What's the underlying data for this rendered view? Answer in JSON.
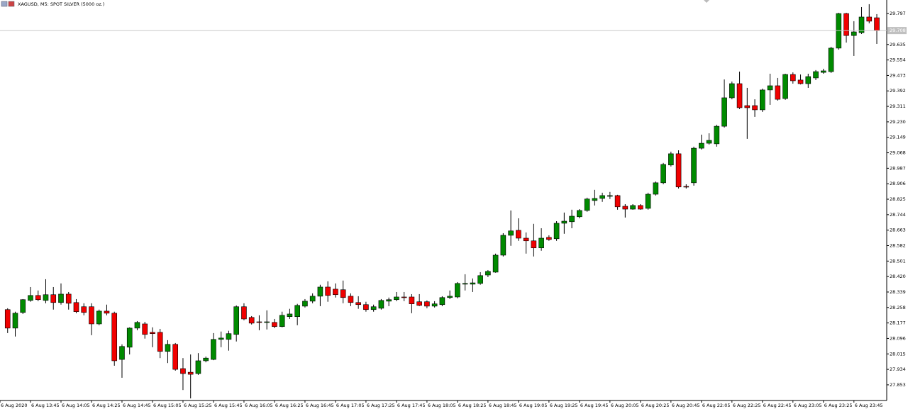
{
  "chart_data": {
    "type": "candlestick",
    "title": "XAGUSD, M5:  SPOT SILVER (5000 oz.)",
    "up_color": "#008a00",
    "down_color": "#f00000",
    "xlim": [
      -1,
      115.3
    ],
    "xticks": [
      {
        "value": -1,
        "label": "6 Aug 2020"
      },
      {
        "value": 3,
        "label": "6 Aug 13:45"
      },
      {
        "value": 7,
        "label": "6 Aug 14:05"
      },
      {
        "value": 11,
        "label": "6 Aug 14:25"
      },
      {
        "value": 15,
        "label": "6 Aug 14:45"
      },
      {
        "value": 19,
        "label": "6 Aug 15:05"
      },
      {
        "value": 23,
        "label": "6 Aug 15:25"
      },
      {
        "value": 27,
        "label": "6 Aug 15:45"
      },
      {
        "value": 31,
        "label": "6 Aug 16:05"
      },
      {
        "value": 35,
        "label": "6 Aug 16:25"
      },
      {
        "value": 39,
        "label": "6 Aug 16:45"
      },
      {
        "value": 43,
        "label": "6 Aug 17:05"
      },
      {
        "value": 47,
        "label": "6 Aug 17:25"
      },
      {
        "value": 51,
        "label": "6 Aug 17:45"
      },
      {
        "value": 55,
        "label": "6 Aug 18:05"
      },
      {
        "value": 59,
        "label": "6 Aug 18:25"
      },
      {
        "value": 63,
        "label": "6 Aug 18:45"
      },
      {
        "value": 67,
        "label": "6 Aug 19:05"
      },
      {
        "value": 71,
        "label": "6 Aug 19:25"
      },
      {
        "value": 75,
        "label": "6 Aug 19:45"
      },
      {
        "value": 79,
        "label": "6 Aug 20:05"
      },
      {
        "value": 83,
        "label": "6 Aug 20:25"
      },
      {
        "value": 87,
        "label": "6 Aug 20:45"
      },
      {
        "value": 91,
        "label": "6 Aug 22:05"
      },
      {
        "value": 95,
        "label": "6 Aug 22:25"
      },
      {
        "value": 99,
        "label": "6 Aug 22:45"
      },
      {
        "value": 103,
        "label": "6 Aug 23:05"
      },
      {
        "value": 107,
        "label": "6 Aug 23:25"
      },
      {
        "value": 111,
        "label": "6 Aug 23:45"
      }
    ],
    "ylim": [
      27.771,
      29.868
    ],
    "yticks": [
      27.853,
      27.934,
      28.015,
      28.096,
      28.177,
      28.258,
      28.339,
      {
        "value": 28.42,
        "label": "28.420"
      },
      28.501,
      28.582,
      28.663,
      28.744,
      28.825,
      28.906,
      28.987,
      29.068,
      29.149,
      {
        "value": 29.23,
        "label": "29.230"
      },
      29.311,
      29.392,
      29.473,
      29.554,
      29.635,
      29.797
    ],
    "last_price": 29.708,
    "open": [
      28.247,
      28.15,
      28.232,
      28.295,
      28.321,
      28.295,
      28.325,
      28.284,
      28.328,
      28.284,
      28.262,
      28.262,
      28.172,
      28.239,
      28.228,
      27.986,
      28.05,
      28.15,
      28.172,
      28.128,
      28.128,
      28.028,
      28.065,
      27.938,
      27.919,
      27.912,
      27.979,
      27.986,
      28.091,
      28.091,
      28.117,
      28.262,
      28.206,
      28.183,
      28.18,
      28.18,
      28.158,
      28.21,
      28.21,
      28.265,
      28.291,
      28.317,
      28.365,
      28.354,
      28.351,
      28.317,
      28.284,
      28.273,
      28.247,
      28.254,
      28.291,
      28.299,
      28.313,
      28.313,
      28.288,
      28.288,
      28.265,
      28.273,
      28.31,
      28.313,
      28.38,
      28.38,
      28.384,
      28.428,
      28.443,
      28.532,
      28.636,
      28.662,
      28.621,
      28.607,
      28.57,
      28.625,
      28.618,
      28.699,
      28.707,
      28.733,
      28.766,
      28.818,
      28.829,
      28.84,
      28.844,
      28.788,
      28.773,
      28.792,
      28.777,
      28.851,
      28.911,
      29.004,
      29.063,
      28.892,
      28.911,
      29.092,
      29.118,
      29.115,
      29.207,
      29.356,
      29.43,
      29.315,
      29.315,
      29.293,
      29.397,
      29.419,
      29.352,
      29.478,
      29.449,
      29.43,
      29.46,
      29.489,
      29.493,
      29.616,
      29.797,
      29.682,
      29.697,
      29.779,
      29.775
    ],
    "high": [
      28.254,
      28.236,
      28.302,
      28.365,
      28.347,
      28.406,
      28.365,
      28.384,
      28.339,
      28.302,
      28.28,
      28.28,
      28.247,
      28.273,
      28.236,
      28.065,
      28.154,
      28.187,
      28.183,
      28.154,
      28.146,
      28.087,
      28.072,
      27.993,
      28.012,
      28.019,
      28.001,
      28.124,
      28.132,
      28.136,
      28.269,
      28.28,
      28.213,
      28.217,
      28.243,
      28.198,
      28.236,
      28.251,
      28.277,
      28.302,
      28.332,
      28.377,
      28.395,
      28.384,
      28.399,
      28.332,
      28.317,
      28.288,
      28.273,
      28.302,
      28.31,
      28.339,
      28.339,
      28.328,
      28.328,
      28.295,
      28.291,
      28.317,
      28.347,
      28.391,
      28.432,
      28.41,
      28.443,
      28.454,
      28.54,
      28.647,
      28.766,
      28.725,
      28.651,
      28.696,
      28.673,
      28.636,
      28.71,
      28.755,
      28.77,
      28.773,
      28.833,
      28.874,
      28.859,
      28.863,
      28.848,
      28.799,
      28.799,
      28.799,
      28.859,
      28.918,
      29.015,
      29.074,
      29.081,
      28.903,
      29.1,
      29.163,
      29.17,
      29.215,
      29.452,
      29.441,
      29.493,
      29.408,
      29.348,
      29.404,
      29.482,
      29.46,
      29.482,
      29.489,
      29.478,
      29.482,
      29.501,
      29.508,
      29.623,
      29.801,
      29.801,
      29.757,
      29.831,
      29.846,
      29.794
    ],
    "low": [
      28.124,
      28.106,
      28.224,
      28.288,
      28.291,
      28.28,
      28.247,
      28.273,
      28.247,
      28.228,
      28.217,
      28.113,
      28.165,
      28.217,
      27.953,
      27.89,
      28.012,
      28.139,
      28.095,
      28.05,
      27.993,
      27.967,
      27.927,
      27.826,
      27.782,
      27.905,
      27.971,
      27.982,
      28.05,
      28.032,
      28.08,
      28.191,
      28.169,
      28.139,
      28.143,
      28.15,
      28.154,
      28.198,
      28.165,
      28.258,
      28.28,
      28.265,
      28.288,
      28.31,
      28.28,
      28.265,
      28.251,
      28.236,
      28.236,
      28.247,
      28.265,
      28.291,
      28.291,
      28.228,
      28.265,
      28.254,
      28.258,
      28.265,
      28.302,
      28.306,
      28.347,
      28.339,
      28.377,
      28.417,
      28.44,
      28.525,
      28.581,
      28.607,
      28.54,
      28.525,
      28.555,
      28.607,
      28.607,
      28.644,
      28.673,
      28.725,
      28.759,
      28.792,
      28.811,
      28.826,
      28.77,
      28.729,
      28.77,
      28.77,
      28.77,
      28.844,
      28.903,
      28.996,
      28.881,
      28.881,
      28.896,
      29.085,
      29.111,
      29.1,
      29.2,
      29.348,
      29.297,
      29.141,
      29.256,
      29.282,
      29.319,
      29.341,
      29.345,
      29.43,
      29.426,
      29.408,
      29.449,
      29.482,
      29.486,
      29.608,
      29.645,
      29.575,
      29.69,
      29.746,
      29.638
    ],
    "close": [
      28.15,
      28.228,
      28.299,
      28.321,
      28.299,
      28.325,
      28.284,
      28.328,
      28.28,
      28.236,
      28.232,
      28.172,
      28.239,
      28.228,
      27.979,
      28.054,
      28.15,
      28.18,
      28.117,
      28.121,
      28.028,
      28.065,
      27.934,
      27.912,
      27.908,
      27.979,
      27.993,
      28.091,
      28.098,
      28.121,
      28.262,
      28.198,
      28.176,
      28.18,
      28.183,
      28.158,
      28.217,
      28.224,
      28.269,
      28.291,
      28.317,
      28.365,
      28.321,
      28.325,
      28.31,
      28.284,
      28.273,
      28.247,
      28.262,
      28.295,
      28.299,
      28.313,
      28.31,
      28.277,
      28.269,
      28.265,
      28.277,
      28.31,
      28.317,
      28.384,
      28.384,
      28.387,
      28.425,
      28.447,
      28.532,
      28.636,
      28.659,
      28.621,
      28.607,
      28.57,
      28.621,
      28.614,
      28.699,
      28.71,
      28.736,
      28.766,
      28.826,
      28.829,
      28.844,
      28.844,
      28.785,
      28.773,
      28.792,
      28.773,
      28.851,
      28.911,
      29.007,
      29.063,
      28.889,
      28.889,
      29.092,
      29.118,
      29.133,
      29.207,
      29.356,
      29.43,
      29.304,
      29.304,
      29.293,
      29.397,
      29.419,
      29.348,
      29.478,
      29.445,
      29.43,
      29.467,
      29.493,
      29.497,
      29.616,
      29.797,
      29.682,
      29.701,
      29.779,
      29.757,
      29.708
    ]
  }
}
